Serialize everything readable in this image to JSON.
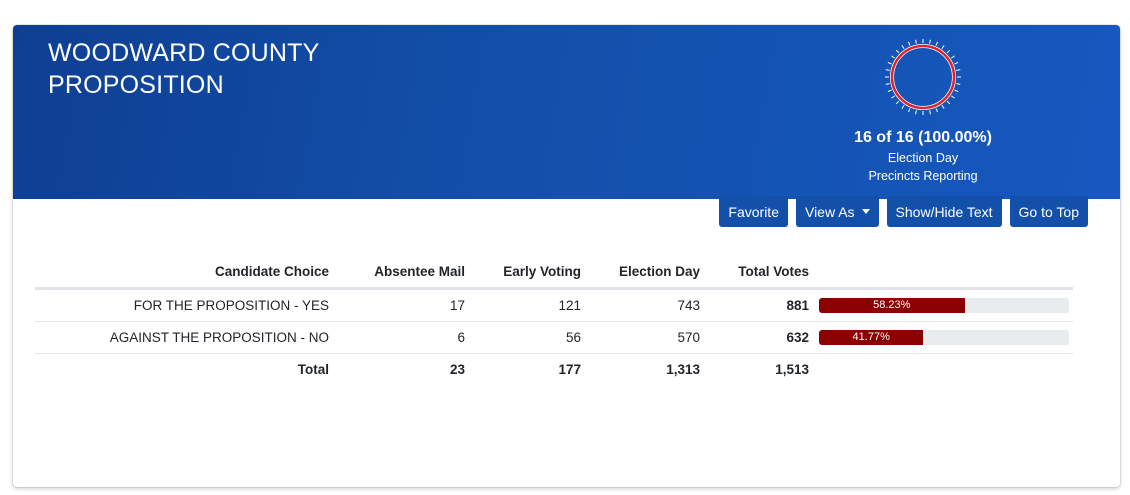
{
  "header": {
    "title_line1": "WOODWARD COUNTY",
    "title_line2": "PROPOSITION",
    "reporting": {
      "count_text": "16 of 16 (100.00%)",
      "line1": "Election Day",
      "line2": "Precincts Reporting",
      "reported": 16,
      "total": 16
    }
  },
  "toolbar": {
    "favorite": "Favorite",
    "view_as": "View As",
    "show_hide_text": "Show/Hide Text",
    "go_to_top": "Go to Top"
  },
  "table": {
    "columns": [
      "Candidate Choice",
      "Absentee Mail",
      "Early Voting",
      "Election Day",
      "Total Votes"
    ],
    "rows": [
      {
        "choice": "FOR THE PROPOSITION - YES",
        "absentee": "17",
        "early": "121",
        "election_day": "743",
        "total": "881",
        "percent_label": "58.23%",
        "percent": 58.23
      },
      {
        "choice": "AGAINST THE PROPOSITION - NO",
        "absentee": "6",
        "early": "56",
        "election_day": "570",
        "total": "632",
        "percent_label": "41.77%",
        "percent": 41.77
      }
    ],
    "totals": {
      "label": "Total",
      "absentee": "23",
      "early": "177",
      "election_day": "1,313",
      "total": "1,513"
    }
  },
  "colors": {
    "banner": "#1350aa",
    "button": "#1350aa",
    "bar_fill": "#8b0000",
    "bar_track": "#e9ecef",
    "dial_ring": "#e0222c"
  },
  "icons": [
    "reporting-dial-icon",
    "caret-down-icon"
  ]
}
